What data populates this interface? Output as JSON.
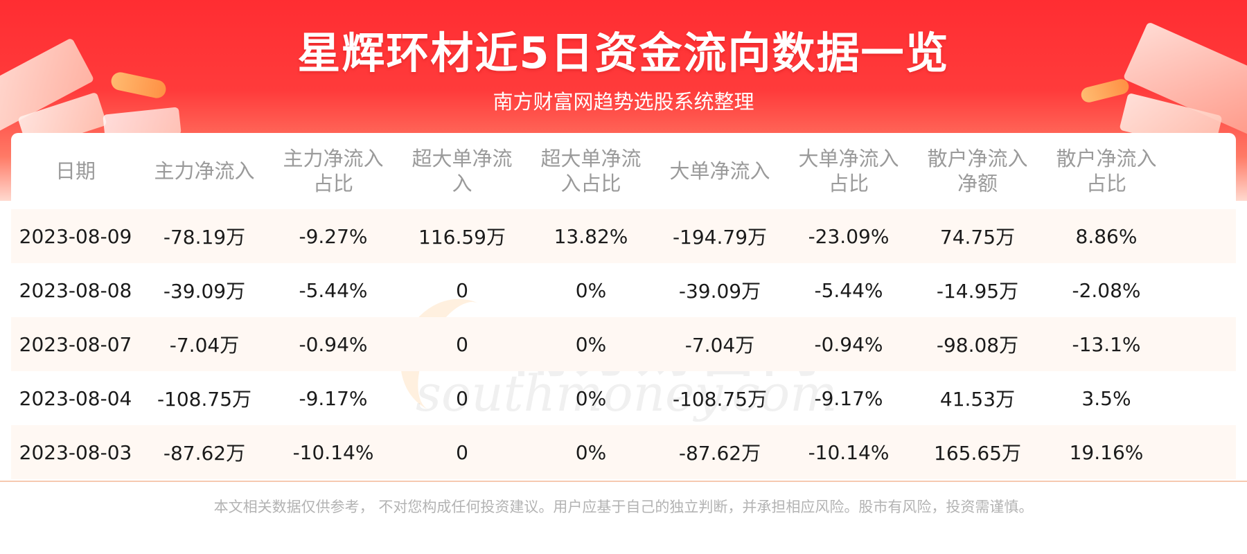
{
  "header": {
    "title": "星辉环材近5日资金流向数据一览",
    "subtitle": "南方财富网趋势选股系统整理"
  },
  "watermark": {
    "cn": "南方财富网",
    "en": "southmoney.com"
  },
  "table": {
    "columns": [
      "日期",
      "主力净流入",
      "主力净流入占比",
      "超大单净流入",
      "超大单净流入占比",
      "大单净流入",
      "大单净流入占比",
      "散户净流入净额",
      "散户净流入占比"
    ],
    "rows": [
      [
        "2023-08-09",
        "-78.19万",
        "-9.27%",
        "116.59万",
        "13.82%",
        "-194.79万",
        "-23.09%",
        "74.75万",
        "8.86%"
      ],
      [
        "2023-08-08",
        "-39.09万",
        "-5.44%",
        "0",
        "0%",
        "-39.09万",
        "-5.44%",
        "-14.95万",
        "-2.08%"
      ],
      [
        "2023-08-07",
        "-7.04万",
        "-0.94%",
        "0",
        "0%",
        "-7.04万",
        "-0.94%",
        "-98.08万",
        "-13.1%"
      ],
      [
        "2023-08-04",
        "-108.75万",
        "-9.17%",
        "0",
        "0%",
        "-108.75万",
        "-9.17%",
        "41.53万",
        "3.5%"
      ],
      [
        "2023-08-03",
        "-87.62万",
        "-10.14%",
        "0",
        "0%",
        "-87.62万",
        "-10.14%",
        "165.65万",
        "19.16%"
      ]
    ]
  },
  "footer": {
    "disclaimer": "本文相关数据仅供参考， 不对您构成任何投资建议。用户应基于自己的独立判断，并承担相应风险。股市有风险，投资需谨慎。"
  },
  "colors": {
    "banner_red": "#ff2d32",
    "row_alt_bg": "#fff8f3",
    "header_text": "#9a9a9a",
    "footer_text": "#b3b3b3"
  }
}
